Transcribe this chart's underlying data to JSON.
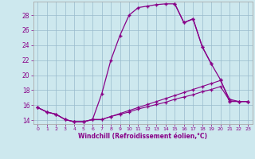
{
  "xlabel": "Windchill (Refroidissement éolien,°C)",
  "bg_color": "#cde8ee",
  "line_color": "#880088",
  "grid_color": "#99bbcc",
  "xlim": [
    -0.5,
    23.5
  ],
  "ylim": [
    13.5,
    29.8
  ],
  "xticks": [
    0,
    1,
    2,
    3,
    4,
    5,
    6,
    7,
    8,
    9,
    10,
    11,
    12,
    13,
    14,
    15,
    16,
    17,
    18,
    19,
    20,
    21,
    22,
    23
  ],
  "yticks": [
    14,
    16,
    18,
    20,
    22,
    24,
    26,
    28
  ],
  "lines": [
    {
      "x": [
        0,
        1,
        2,
        3,
        4,
        5,
        6,
        7,
        8,
        9,
        10,
        11,
        12,
        13,
        14,
        15,
        16,
        17,
        18,
        19,
        20,
        21,
        22,
        23
      ],
      "y": [
        15.7,
        15.1,
        14.8,
        14.1,
        13.8,
        13.8,
        14.1,
        17.5,
        22.0,
        25.3,
        28.0,
        29.0,
        29.2,
        29.4,
        29.5,
        29.5,
        27.0,
        27.5,
        23.8,
        21.5,
        null,
        null,
        null,
        null
      ]
    },
    {
      "x": [
        15,
        16,
        17,
        18,
        19,
        20,
        21,
        22,
        23
      ],
      "y": [
        29.5,
        27.0,
        27.5,
        23.8,
        21.5,
        19.4,
        16.5,
        16.5,
        16.5
      ]
    },
    {
      "x": [
        0,
        1,
        2,
        3,
        4,
        5,
        6,
        7,
        8,
        9,
        10,
        11,
        12,
        13,
        14,
        15,
        16,
        17,
        18,
        19,
        20,
        21,
        22,
        23
      ],
      "y": [
        15.7,
        15.1,
        14.8,
        14.1,
        13.8,
        13.8,
        14.1,
        14.1,
        14.5,
        14.9,
        15.3,
        15.7,
        16.1,
        16.5,
        16.9,
        17.3,
        17.7,
        18.1,
        18.5,
        18.9,
        19.3,
        16.8,
        16.5,
        16.5
      ]
    },
    {
      "x": [
        0,
        1,
        2,
        3,
        4,
        5,
        6,
        7,
        8,
        9,
        10,
        11,
        12,
        13,
        14,
        15,
        16,
        17,
        18,
        19,
        20,
        21,
        22,
        23
      ],
      "y": [
        15.7,
        15.1,
        14.8,
        14.1,
        13.8,
        13.8,
        14.1,
        14.1,
        14.5,
        14.8,
        15.1,
        15.5,
        15.8,
        16.1,
        16.4,
        16.8,
        17.1,
        17.4,
        17.8,
        18.1,
        18.5,
        16.6,
        16.5,
        16.5
      ]
    }
  ]
}
